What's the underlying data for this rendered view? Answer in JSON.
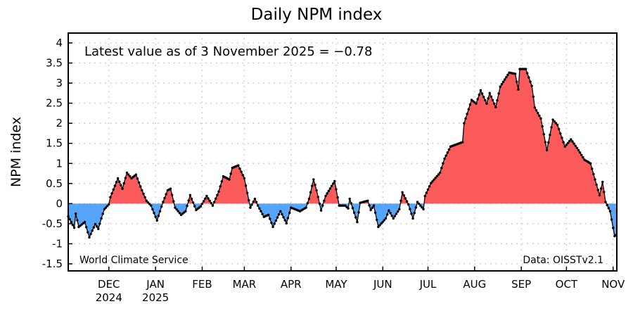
{
  "chart_data": {
    "type": "area",
    "title": "Daily NPM index",
    "ylabel": "NPM index",
    "xlabel": "",
    "annotation": "Latest value as of 3 November 2025 = −0.78",
    "credit_left": "World Climate Service",
    "credit_right": "Data: OISSTv2.1",
    "x_start_date": "2024-11-04",
    "x_range_days": [
      0,
      364
    ],
    "ylim": [
      -1.5,
      4
    ],
    "yticks": [
      {
        "v": 4,
        "label": "4"
      },
      {
        "v": 3.5,
        "label": "3.5"
      },
      {
        "v": 3,
        "label": "3"
      },
      {
        "v": 2.5,
        "label": "2.5"
      },
      {
        "v": 2,
        "label": "2"
      },
      {
        "v": 1.5,
        "label": "1.5"
      },
      {
        "v": 1,
        "label": "1"
      },
      {
        "v": 0.5,
        "label": "0.5"
      },
      {
        "v": 0,
        "label": "0"
      },
      {
        "v": -0.5,
        "label": "-0.5"
      },
      {
        "v": -1,
        "label": "-1"
      },
      {
        "v": -1.5,
        "label": "-1.5"
      }
    ],
    "month_ticks": [
      {
        "day": 27,
        "label": "DEC",
        "year": "2024"
      },
      {
        "day": 58,
        "label": "JAN",
        "year": "2025"
      },
      {
        "day": 89,
        "label": "FEB",
        "year": ""
      },
      {
        "day": 117,
        "label": "MAR",
        "year": ""
      },
      {
        "day": 148,
        "label": "APR",
        "year": ""
      },
      {
        "day": 178,
        "label": "MAY",
        "year": ""
      },
      {
        "day": 209,
        "label": "JUN",
        "year": ""
      },
      {
        "day": 239,
        "label": "JUL",
        "year": ""
      },
      {
        "day": 270,
        "label": "AUG",
        "year": ""
      },
      {
        "day": 301,
        "label": "SEP",
        "year": ""
      },
      {
        "day": 331,
        "label": "OCT",
        "year": ""
      },
      {
        "day": 362,
        "label": "NOV",
        "year": ""
      }
    ],
    "grid": true,
    "positive_color": "#fa5a5a",
    "negative_color": "#55a5fa",
    "series": [
      {
        "name": "NPM index",
        "points": [
          [
            0,
            -0.32
          ],
          [
            4,
            -0.6
          ],
          [
            5,
            -0.25
          ],
          [
            7,
            -0.58
          ],
          [
            11,
            -0.46
          ],
          [
            14,
            -0.84
          ],
          [
            18,
            -0.51
          ],
          [
            20,
            -0.63
          ],
          [
            22,
            -0.37
          ],
          [
            24,
            -0.14
          ],
          [
            27,
            -0.02
          ],
          [
            28,
            0.16
          ],
          [
            33,
            0.63
          ],
          [
            36,
            0.37
          ],
          [
            39,
            0.77
          ],
          [
            42,
            0.63
          ],
          [
            45,
            0.72
          ],
          [
            49,
            0.33
          ],
          [
            52,
            0.07
          ],
          [
            55,
            -0.05
          ],
          [
            59,
            -0.42
          ],
          [
            63,
            0.04
          ],
          [
            66,
            0.33
          ],
          [
            68,
            0.37
          ],
          [
            71,
            -0.1
          ],
          [
            75,
            -0.28
          ],
          [
            78,
            -0.19
          ],
          [
            81,
            0.21
          ],
          [
            85,
            -0.16
          ],
          [
            88,
            -0.07
          ],
          [
            92,
            0.19
          ],
          [
            96,
            -0.05
          ],
          [
            100,
            0.3
          ],
          [
            103,
            0.68
          ],
          [
            107,
            0.6
          ],
          [
            109,
            0.89
          ],
          [
            113,
            0.95
          ],
          [
            117,
            0.63
          ],
          [
            121,
            -0.1
          ],
          [
            124,
            0.12
          ],
          [
            126,
            -0.05
          ],
          [
            130,
            -0.33
          ],
          [
            133,
            -0.28
          ],
          [
            136,
            -0.58
          ],
          [
            141,
            -0.19
          ],
          [
            145,
            -0.49
          ],
          [
            148,
            -0.1
          ],
          [
            154,
            -0.19
          ],
          [
            158,
            -0.1
          ],
          [
            160,
            0.12
          ],
          [
            163,
            0.6
          ],
          [
            165,
            0.33
          ],
          [
            168,
            -0.17
          ],
          [
            171,
            0.19
          ],
          [
            177,
            0.56
          ],
          [
            180,
            -0.05
          ],
          [
            184,
            -0.05
          ],
          [
            186,
            -0.12
          ],
          [
            187,
            0.12
          ],
          [
            192,
            -0.46
          ],
          [
            194,
            0.02
          ],
          [
            199,
            0.07
          ],
          [
            201,
            -0.16
          ],
          [
            203,
            -0.05
          ],
          [
            206,
            -0.58
          ],
          [
            211,
            -0.37
          ],
          [
            213,
            -0.17
          ],
          [
            216,
            -0.37
          ],
          [
            220,
            -0.14
          ],
          [
            222,
            0.28
          ],
          [
            226,
            -0.02
          ],
          [
            229,
            -0.37
          ],
          [
            232,
            0.04
          ],
          [
            236,
            -0.14
          ],
          [
            237,
            0.19
          ],
          [
            241,
            0.51
          ],
          [
            247,
            0.77
          ],
          [
            250,
            1.12
          ],
          [
            254,
            1.42
          ],
          [
            262,
            1.53
          ],
          [
            263,
            2.0
          ],
          [
            268,
            2.58
          ],
          [
            271,
            2.49
          ],
          [
            274,
            2.82
          ],
          [
            278,
            2.49
          ],
          [
            280,
            2.75
          ],
          [
            284,
            2.4
          ],
          [
            287,
            2.91
          ],
          [
            290,
            3.09
          ],
          [
            293,
            3.26
          ],
          [
            297,
            3.23
          ],
          [
            299,
            2.84
          ],
          [
            300,
            3.35
          ],
          [
            304,
            3.35
          ],
          [
            308,
            2.93
          ],
          [
            310,
            2.39
          ],
          [
            314,
            2.12
          ],
          [
            318,
            1.33
          ],
          [
            322,
            2.09
          ],
          [
            325,
            1.96
          ],
          [
            330,
            1.42
          ],
          [
            334,
            1.6
          ],
          [
            339,
            1.33
          ],
          [
            343,
            1.09
          ],
          [
            347,
            1.0
          ],
          [
            350,
            0.6
          ],
          [
            353,
            0.21
          ],
          [
            355,
            0.54
          ],
          [
            357,
            0.04
          ],
          [
            360,
            -0.19
          ],
          [
            363,
            -0.81
          ],
          [
            364,
            -0.78
          ]
        ]
      }
    ]
  }
}
